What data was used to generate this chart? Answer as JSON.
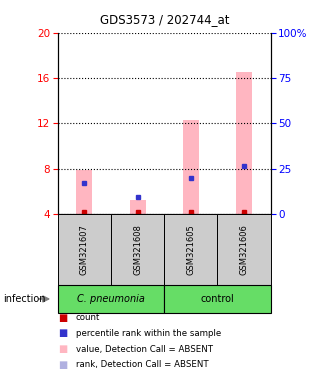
{
  "title": "GDS3573 / 202744_at",
  "samples": [
    "GSM321607",
    "GSM321608",
    "GSM321605",
    "GSM321606"
  ],
  "ylim_left": [
    4,
    20
  ],
  "ylim_right": [
    0,
    100
  ],
  "yticks_left": [
    4,
    8,
    12,
    16,
    20
  ],
  "yticks_right": [
    0,
    25,
    50,
    75,
    100
  ],
  "bar_bottom": 4,
  "pink_bar_tops": [
    7.9,
    5.2,
    12.3,
    16.5
  ],
  "blue_rank_vals": [
    6.7,
    5.5,
    7.2,
    8.2
  ],
  "red_count_vals": [
    4.2,
    4.15,
    4.2,
    4.2
  ],
  "pink_color": "#ffb6c1",
  "blue_color": "#3333cc",
  "red_color": "#cc0000",
  "light_blue_color": "#b0b0e0",
  "legend_items": [
    {
      "color": "#cc0000",
      "label": "count"
    },
    {
      "color": "#3333cc",
      "label": "percentile rank within the sample"
    },
    {
      "color": "#ffb6c1",
      "label": "value, Detection Call = ABSENT"
    },
    {
      "color": "#b0b0e0",
      "label": "rank, Detection Call = ABSENT"
    }
  ],
  "group1_label": "C. pneumonia",
  "group2_label": "control",
  "group_bg_color": "#66dd66",
  "sample_bg_color": "#cccccc"
}
